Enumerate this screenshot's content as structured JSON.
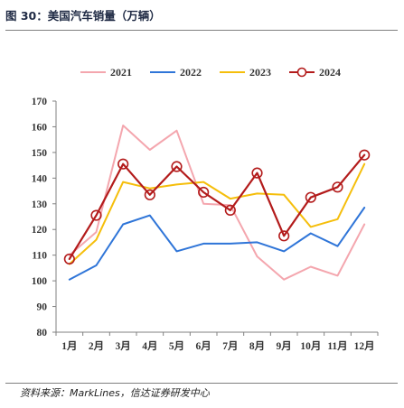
{
  "figure": {
    "title": "图 30：美国汽车销量（万辆）",
    "source": "资料来源：MarkLines，信达证券研发中心"
  },
  "chart_data": {
    "type": "line",
    "categories": [
      "1月",
      "2月",
      "3月",
      "4月",
      "5月",
      "6月",
      "7月",
      "8月",
      "9月",
      "10月",
      "11月",
      "12月"
    ],
    "ylim": [
      80,
      170
    ],
    "yticks": [
      80,
      90,
      100,
      110,
      120,
      130,
      140,
      150,
      160,
      170
    ],
    "grid": false,
    "legend_position": "top",
    "series": [
      {
        "name": "2021",
        "color": "#f4a6ae",
        "marker": "none",
        "values": [
          110,
          119,
          160.5,
          151,
          158.5,
          130,
          129.5,
          109.5,
          100.5,
          105.5,
          102,
          122
        ]
      },
      {
        "name": "2022",
        "color": "#2f75d8",
        "marker": "none",
        "values": [
          100.5,
          106,
          122,
          125.5,
          111.5,
          114.5,
          114.5,
          115,
          111.5,
          118.5,
          113.5,
          128.5
        ]
      },
      {
        "name": "2023",
        "color": "#f5be0b",
        "marker": "none",
        "values": [
          106.5,
          116,
          138.5,
          136,
          137.5,
          138.5,
          132,
          134,
          133.5,
          121,
          124,
          145.5
        ]
      },
      {
        "name": "2024",
        "color": "#b31b1b",
        "marker": "open-circle",
        "values": [
          108.5,
          125.5,
          145.5,
          133.5,
          144.5,
          134.5,
          127.5,
          142,
          117.5,
          132.5,
          136.5,
          149
        ]
      }
    ]
  }
}
